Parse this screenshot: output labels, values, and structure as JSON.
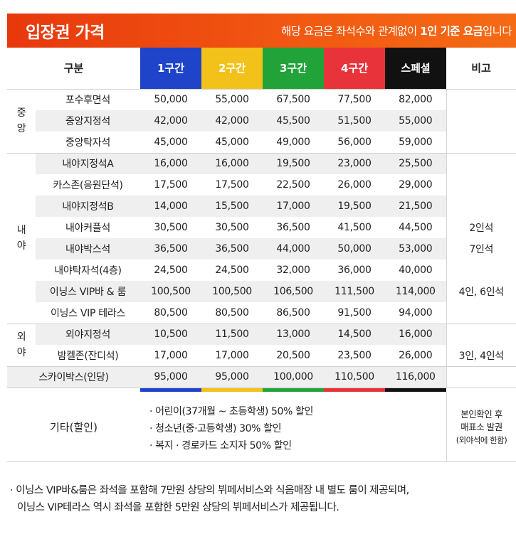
{
  "banner": {
    "title": "입장권 가격",
    "note_prefix": "해당 요금은 좌석수와 관계없이 ",
    "note_bold": "1인 기준 요금",
    "note_suffix": "입니다"
  },
  "header": {
    "category": "구분",
    "zones": [
      "1구간",
      "2구간",
      "3구간",
      "4구간",
      "스페셜"
    ],
    "remark": "비고"
  },
  "groups": [
    {
      "label": "중\n앙",
      "rows": [
        {
          "name": "포수후면석",
          "prices": [
            "50,000",
            "55,000",
            "67,500",
            "77,500",
            "82,000"
          ],
          "note": ""
        },
        {
          "name": "중앙지정석",
          "prices": [
            "42,000",
            "42,000",
            "45,500",
            "51,500",
            "55,000"
          ],
          "note": ""
        },
        {
          "name": "중앙탁자석",
          "prices": [
            "45,000",
            "45,000",
            "49,000",
            "56,000",
            "59,000"
          ],
          "note": ""
        }
      ]
    },
    {
      "label": "내\n야",
      "rows": [
        {
          "name": "내야지정석A",
          "prices": [
            "16,000",
            "16,000",
            "19,500",
            "23,000",
            "25,500"
          ],
          "note": ""
        },
        {
          "name": "카스존(응원단석)",
          "prices": [
            "17,500",
            "17,500",
            "22,500",
            "26,000",
            "29,000"
          ],
          "note": ""
        },
        {
          "name": "내야지정석B",
          "prices": [
            "14,000",
            "15,500",
            "17,000",
            "19,500",
            "21,500"
          ],
          "note": ""
        },
        {
          "name": "내야커플석",
          "prices": [
            "30,500",
            "30,500",
            "36,500",
            "41,500",
            "44,500"
          ],
          "note": "2인석"
        },
        {
          "name": "내야박스석",
          "prices": [
            "36,500",
            "36,500",
            "44,000",
            "50,000",
            "53,000"
          ],
          "note": "7인석"
        },
        {
          "name": "내야탁자석(4층)",
          "prices": [
            "24,500",
            "24,500",
            "32,000",
            "36,000",
            "40,000"
          ],
          "note": ""
        },
        {
          "name": "이닝스 VIP바 & 룸",
          "prices": [
            "100,500",
            "100,500",
            "106,500",
            "111,500",
            "114,000"
          ],
          "note": "4인, 6인석"
        },
        {
          "name": "이닝스 VIP 테라스",
          "prices": [
            "80,500",
            "80,500",
            "86,500",
            "91,500",
            "94,000"
          ],
          "note": ""
        }
      ]
    },
    {
      "label": "외\n야",
      "rows": [
        {
          "name": "외야지정석",
          "prices": [
            "10,500",
            "11,500",
            "13,000",
            "14,500",
            "16,000"
          ],
          "note": ""
        },
        {
          "name": "밤켈존(잔디석)",
          "prices": [
            "17,000",
            "17,000",
            "20,500",
            "23,500",
            "26,000"
          ],
          "note": "3인, 4인석"
        }
      ]
    }
  ],
  "skybox": {
    "name": "스카이박스(인당)",
    "prices": [
      "95,000",
      "95,000",
      "100,000",
      "110,500",
      "116,000"
    ],
    "note": ""
  },
  "discount": {
    "label": "기타(할인)",
    "items": [
      "· 어린이(37개월 ~ 초등학생) 50% 할인",
      "· 청소년(중·고등학생) 30% 할인",
      "· 복지 · 경로카드 소지자 50% 할인"
    ],
    "note_line1": "본인확인 후",
    "note_line2": "매표소 발권",
    "note_line3": "(외야석에 한함)"
  },
  "footnote": {
    "line1": "· 이닝스 VIP바&룸은 좌석을 포함해 7만원 상당의 뷔페서비스와 식음매장 내 별도 룸이 제공되며,",
    "line2": "이닝스 VIP테라스 역시 좌석을 포함한 5만원 상당의 뷔페서비스가 제공됩니다."
  },
  "colors": {
    "banner": "#f04a10",
    "zone1": "#1f43c9",
    "zone2": "#f2c21a",
    "zone3": "#22a33a",
    "zone4": "#e8333a",
    "special": "#111111"
  }
}
